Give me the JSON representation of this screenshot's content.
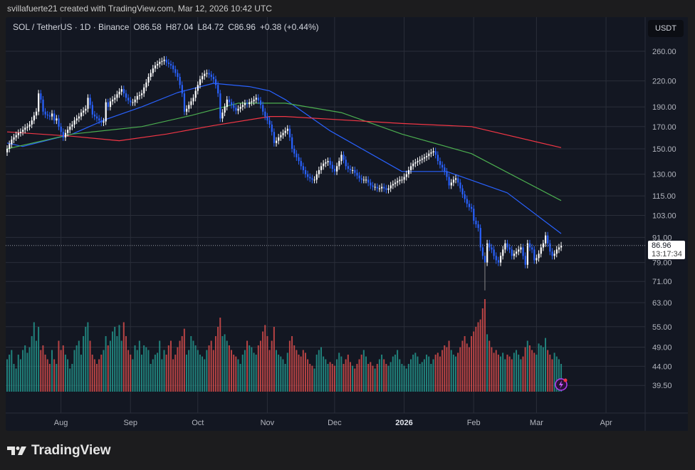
{
  "credit": "svillafuerte21 created with TradingView.com, Mar 12, 2026 10:42 UTC",
  "legend": {
    "symbol": "SOL / TetherUS · 1D · Binance",
    "open": "O86.58",
    "high": "H87.04",
    "low": "L84.72",
    "close": "C86.96",
    "change": "+0.38 (+0.44%)"
  },
  "currency_button": "USDT",
  "last_price": {
    "value": "86.96",
    "countdown": "13:17:34"
  },
  "brand": "TradingView",
  "colors": {
    "up_candle": "#ffffff",
    "down_candle": "#2962ff",
    "volume_up": "#26a69a",
    "volume_down": "#ef5350",
    "ma_blue": "#2962ff",
    "ma_green": "#4caf50",
    "ma_red": "#f23645",
    "background": "#131722"
  },
  "icons": {
    "alert": "lightning-icon",
    "logo": "tradingview-logo-icon"
  },
  "chart_data": {
    "type": "candlestick",
    "title": "",
    "y_scale": "log",
    "ylim": [
      37,
      290
    ],
    "grid": true,
    "y_ticks": [
      "260.00",
      "220.00",
      "190.00",
      "170.00",
      "150.00",
      "130.00",
      "115.00",
      "103.00",
      "91.00",
      "79.00",
      "71.00",
      "63.00",
      "55.00",
      "49.00",
      "44.00",
      "39.50"
    ],
    "x_ticks": [
      {
        "label": "Aug",
        "day": 24
      },
      {
        "label": "Sep",
        "day": 55
      },
      {
        "label": "Oct",
        "day": 85
      },
      {
        "label": "Nov",
        "day": 116
      },
      {
        "label": "Dec",
        "day": 146
      },
      {
        "label": "2026",
        "day": 177,
        "bold": true
      },
      {
        "label": "Feb",
        "day": 208
      },
      {
        "label": "Mar",
        "day": 236
      },
      {
        "label": "Apr",
        "day": 267
      }
    ],
    "first_date": "2025-07-08",
    "last_date": "2026-03-12",
    "close": [
      150,
      154,
      158,
      160,
      162,
      164,
      165,
      167,
      169,
      170,
      172,
      176,
      181,
      185,
      205,
      198,
      185,
      182,
      181,
      180,
      183,
      176,
      178,
      170,
      165,
      160,
      164,
      167,
      170,
      172,
      176,
      178,
      180,
      184,
      186,
      188,
      200,
      192,
      182,
      180,
      178,
      176,
      174,
      175,
      195,
      190,
      196,
      198,
      200,
      204,
      207,
      210,
      205,
      200,
      197,
      195,
      195,
      198,
      202,
      203,
      205,
      212,
      218,
      225,
      230,
      236,
      240,
      242,
      245,
      246,
      248,
      244,
      242,
      240,
      235,
      230,
      225,
      215,
      205,
      185,
      188,
      192,
      196,
      200,
      208,
      215,
      222,
      226,
      229,
      230,
      228,
      225,
      222,
      215,
      205,
      178,
      184,
      190,
      198,
      195,
      192,
      189,
      186,
      188,
      190,
      192,
      194,
      193,
      195,
      196,
      198,
      200,
      197,
      192,
      185,
      180,
      176,
      172,
      165,
      155,
      157,
      160,
      162,
      164,
      166,
      168,
      160,
      150,
      146,
      143,
      140,
      136,
      133,
      130,
      128,
      127,
      126,
      126,
      130,
      133,
      136,
      138,
      139,
      140,
      137,
      134,
      132,
      136,
      140,
      145,
      141,
      136,
      134,
      133,
      133,
      131,
      129,
      127,
      126,
      126,
      126,
      124,
      122,
      121,
      121,
      120,
      120,
      121,
      120,
      119,
      120,
      122,
      123,
      124,
      125,
      126,
      126,
      128,
      130,
      133,
      136,
      138,
      139,
      140,
      141,
      142,
      143,
      144,
      146,
      147,
      148,
      145,
      140,
      137,
      135,
      132,
      128,
      122,
      124,
      126,
      127,
      124,
      120,
      116,
      113,
      110,
      108,
      107,
      100,
      98,
      96,
      86,
      82,
      79,
      88,
      86,
      85,
      82,
      80,
      79,
      82,
      85,
      88,
      86,
      85,
      82,
      83,
      84,
      85,
      86,
      82,
      78,
      88,
      86,
      85,
      80,
      81,
      83,
      86,
      88,
      92,
      88,
      84,
      82,
      83,
      85,
      86,
      86.96
    ],
    "notable_lows": [
      {
        "day": 213,
        "low": 67.5
      }
    ],
    "volume_relative": [
      35,
      40,
      45,
      30,
      25,
      40,
      35,
      45,
      50,
      42,
      48,
      60,
      75,
      55,
      70,
      45,
      50,
      40,
      35,
      30,
      45,
      35,
      30,
      55,
      45,
      50,
      40,
      35,
      25,
      30,
      45,
      50,
      55,
      40,
      60,
      70,
      75,
      55,
      40,
      35,
      30,
      35,
      40,
      45,
      60,
      50,
      55,
      65,
      70,
      60,
      72,
      55,
      75,
      60,
      45,
      40,
      35,
      50,
      45,
      55,
      40,
      50,
      48,
      45,
      30,
      35,
      40,
      42,
      55,
      35,
      45,
      40,
      50,
      55,
      35,
      40,
      48,
      55,
      60,
      68,
      40,
      45,
      60,
      55,
      50,
      45,
      40,
      38,
      35,
      45,
      50,
      55,
      45,
      60,
      70,
      80,
      60,
      62,
      55,
      50,
      45,
      40,
      38,
      35,
      30,
      40,
      45,
      55,
      50,
      48,
      42,
      40,
      50,
      55,
      65,
      72,
      60,
      45,
      55,
      70,
      45,
      40,
      38,
      35,
      30,
      42,
      55,
      60,
      50,
      45,
      40,
      38,
      45,
      42,
      35,
      30,
      28,
      25,
      40,
      45,
      48,
      38,
      35,
      30,
      32,
      30,
      28,
      35,
      42,
      38,
      30,
      35,
      40,
      32,
      28,
      25,
      30,
      35,
      40,
      45,
      38,
      30,
      32,
      28,
      25,
      30,
      35,
      40,
      35,
      30,
      28,
      32,
      38,
      40,
      45,
      35,
      30,
      28,
      25,
      30,
      35,
      40,
      42,
      38,
      30,
      32,
      35,
      40,
      38,
      30,
      35,
      40,
      42,
      38,
      45,
      50,
      48,
      55,
      45,
      40,
      38,
      42,
      48,
      55,
      60,
      52,
      48,
      60,
      65,
      70,
      75,
      78,
      90,
      100,
      62,
      55,
      48,
      42,
      45,
      40,
      38,
      42,
      35,
      40,
      38,
      35,
      42,
      45,
      40,
      35,
      38,
      48,
      55,
      50,
      45,
      42,
      40,
      52,
      50,
      48,
      58,
      45,
      40,
      35,
      42,
      38,
      35,
      30
    ],
    "moving_averages": [
      {
        "color": "#2962ff",
        "points": [
          [
            0,
            155
          ],
          [
            7,
            152
          ],
          [
            29,
            163
          ],
          [
            44,
            177
          ],
          [
            60,
            190
          ],
          [
            76,
            206
          ],
          [
            92,
            217
          ],
          [
            108,
            213
          ],
          [
            117,
            208
          ],
          [
            124,
            198
          ],
          [
            144,
            166
          ],
          [
            176,
            132
          ],
          [
            196,
            132
          ],
          [
            223,
            117
          ],
          [
            247,
            93
          ]
        ]
      },
      {
        "color": "#4caf50",
        "points": [
          [
            0,
            150
          ],
          [
            29,
            163
          ],
          [
            60,
            170
          ],
          [
            82,
            181
          ],
          [
            103,
            194
          ],
          [
            117,
            194
          ],
          [
            124,
            194
          ],
          [
            149,
            184
          ],
          [
            176,
            163
          ],
          [
            207,
            146
          ],
          [
            247,
            112
          ]
        ]
      },
      {
        "color": "#f23645",
        "points": [
          [
            0,
            165
          ],
          [
            29,
            161
          ],
          [
            50,
            157
          ],
          [
            71,
            163
          ],
          [
            92,
            171
          ],
          [
            117,
            180
          ],
          [
            124,
            180
          ],
          [
            176,
            173
          ],
          [
            207,
            170
          ],
          [
            247,
            151
          ]
        ]
      }
    ]
  }
}
